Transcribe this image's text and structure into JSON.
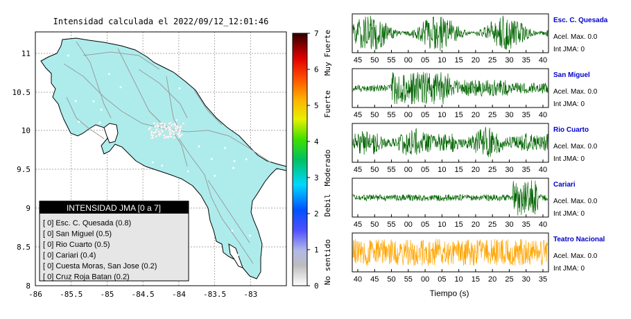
{
  "map_panel": {
    "title": "Intensidad calculada el 2022/09/12_12:01:46",
    "x_ticks": [
      "-86",
      "-85.5",
      "-85",
      "-84.5",
      "-84",
      "-83.5",
      "-83"
    ],
    "y_ticks": [
      "11",
      "10.5",
      "10",
      "9.5",
      "9",
      "8.5",
      "8"
    ],
    "legend": {
      "title": "INTENSIDAD JMA [0 a 7]",
      "items": [
        "[ 0]  Esc. C. Quesada (0.8)",
        "[ 0]  San Miguel (0.5)",
        "[ 0]  Rio Cuarto (0.5)",
        "[ 0]  Cariari (0.4)",
        "[ 0]  Cuesta Moras, San Jose (0.2)",
        "[ 0]  Cruz Roja Batan (0.2)"
      ]
    },
    "colorbar": {
      "ticks": [
        "7",
        "6",
        "5",
        "4",
        "3",
        "2",
        "1",
        "0"
      ],
      "labels": [
        "Muy Fuerte",
        "Fuerte",
        "Moderado",
        "Debil",
        "No sentido"
      ]
    },
    "colors": {
      "land": "#aeecec",
      "border": "#000000",
      "roads": "#9a9a9a",
      "stations": "#ffffff"
    }
  },
  "chart_data": {
    "type": "line",
    "x_axis_label": "Tiempo (s)",
    "series": [
      {
        "name": "Esc. C. Quesada",
        "acel_label": "Acel. Max. 0.0",
        "int_label": "Int JMA: 0",
        "color": "#006400",
        "x_ticks": [
          "45",
          "50",
          "55",
          "00",
          "05",
          "10",
          "15",
          "20",
          "25",
          "30",
          "35",
          "40"
        ]
      },
      {
        "name": "San Miguel",
        "acel_label": "Acel. Max. 0.0",
        "int_label": "Int JMA: 0",
        "color": "#006400",
        "x_ticks": [
          "45",
          "50",
          "55",
          "00",
          "05",
          "10",
          "15",
          "20",
          "25",
          "30",
          "35",
          "40"
        ]
      },
      {
        "name": "Rio Cuarto",
        "acel_label": "Acel. Max. 0.0",
        "int_label": "Int JMA: 0",
        "color": "#006400",
        "x_ticks": [
          "45",
          "50",
          "55",
          "00",
          "05",
          "10",
          "15",
          "20",
          "25",
          "30",
          "35",
          "40"
        ]
      },
      {
        "name": "Cariari",
        "acel_label": "Acel. Max. 0.0",
        "int_label": "Int JMA: 0",
        "color": "#006400",
        "x_ticks": [
          "45",
          "50",
          "55",
          "00",
          "05",
          "10",
          "15",
          "20",
          "25",
          "30",
          "35",
          "40"
        ]
      },
      {
        "name": "Teatro Nacional",
        "acel_label": "Acel. Max. 0.0",
        "int_label": "Int JMA: 0",
        "color": "#ffa500",
        "x_ticks": [
          "40",
          "45",
          "50",
          "55",
          "00",
          "05",
          "10",
          "15",
          "20",
          "25",
          "30",
          "35"
        ]
      }
    ]
  }
}
